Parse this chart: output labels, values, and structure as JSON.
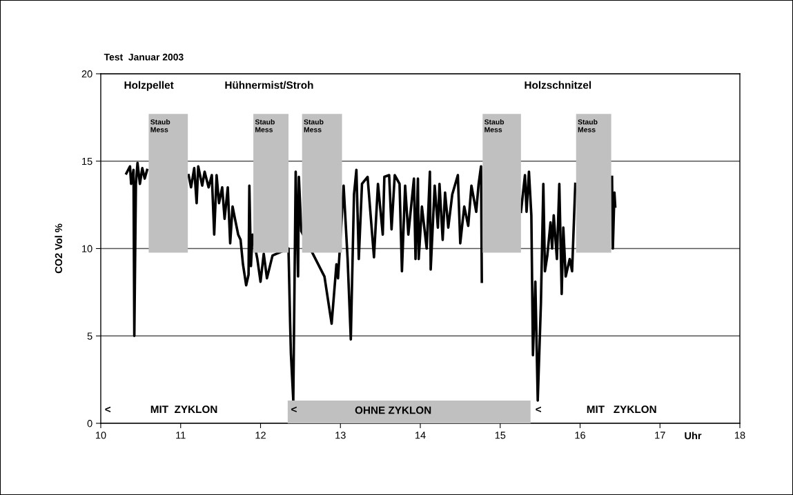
{
  "chart_data": {
    "type": "line",
    "title": "Test  Januar 2003",
    "xlabel": "Uhr",
    "ylabel": "CO2 Vol %",
    "xlim": [
      10,
      18
    ],
    "xticks": [
      10,
      11,
      12,
      13,
      14,
      15,
      16,
      17,
      18
    ],
    "ylim": [
      0,
      20
    ],
    "yticks": [
      0,
      5,
      10,
      15,
      20
    ],
    "grid": "y",
    "annotations": [
      "Holzpellet",
      "Hühnermist/Stroh",
      "Holzschnitzel",
      "<",
      "MIT  ZYKLON",
      "<",
      "<",
      "MIT   ZYKLON"
    ],
    "bands": [
      {
        "axis": "x",
        "from": 10.6,
        "to": 11.09,
        "label": "Staub\nMess",
        "color": "#c0c0c0"
      },
      {
        "axis": "x",
        "from": 11.91,
        "to": 12.35,
        "label": "Staub\nMess",
        "color": "#c0c0c0"
      },
      {
        "axis": "x",
        "from": 12.52,
        "to": 13.02,
        "label": "Staub\nMess",
        "color": "#c0c0c0"
      },
      {
        "axis": "x",
        "from": 14.78,
        "to": 15.26,
        "label": "Staub\nMess",
        "color": "#c0c0c0"
      },
      {
        "axis": "x",
        "from": 15.95,
        "to": 16.39,
        "label": "Staub\nMess",
        "color": "#c0c0c0"
      },
      {
        "axis": "x",
        "from": 12.34,
        "to": 15.38,
        "label": "OHNE ZYKLON",
        "color": "#c0c0c0"
      }
    ],
    "series": [
      {
        "color": "#000000",
        "x": [
          10.32,
          10.366,
          10.38,
          10.41,
          10.42,
          10.44,
          10.46,
          10.49,
          10.52,
          10.55,
          10.58,
          10.85,
          11.1,
          11.13,
          11.17,
          11.2,
          11.22,
          11.27,
          11.3,
          11.35,
          11.39,
          11.42,
          11.45,
          11.48,
          11.52,
          11.55,
          11.59,
          11.62,
          11.65,
          11.68,
          11.72,
          11.75,
          11.78,
          11.82,
          11.85,
          11.86,
          11.88,
          11.9,
          11.96,
          12.0,
          12.04,
          12.08,
          12.15,
          12.35,
          12.37,
          12.38,
          12.41,
          12.44,
          12.47,
          12.48,
          12.51,
          12.8,
          12.89,
          12.95,
          12.97,
          13.04,
          13.09,
          13.13,
          13.17,
          13.2,
          13.23,
          13.27,
          13.34,
          13.42,
          13.47,
          13.53,
          13.55,
          13.61,
          13.64,
          13.68,
          13.74,
          13.77,
          13.81,
          13.85,
          13.92,
          13.94,
          13.97,
          13.98,
          14.02,
          14.08,
          14.12,
          14.13,
          14.18,
          14.22,
          14.24,
          14.28,
          14.31,
          14.35,
          14.4,
          14.47,
          14.5,
          14.55,
          14.6,
          14.64,
          14.7,
          14.73,
          14.76,
          14.77,
          15.02,
          15.26,
          15.31,
          15.33,
          15.36,
          15.39,
          15.41,
          15.44,
          15.47,
          15.51,
          15.54,
          15.56,
          15.59,
          15.63,
          15.65,
          15.67,
          15.71,
          15.74,
          15.77,
          15.79,
          15.82,
          15.87,
          15.9,
          15.94,
          16.17,
          16.4,
          16.41,
          16.43,
          16.44
        ],
        "values": [
          14.3,
          14.7,
          13.7,
          14.5,
          5.0,
          13.7,
          14.9,
          13.7,
          14.6,
          14.0,
          14.5,
          null,
          14.2,
          13.5,
          14.6,
          12.6,
          14.7,
          13.6,
          14.4,
          13.5,
          14.2,
          10.8,
          14.2,
          12.6,
          13.5,
          11.7,
          13.5,
          10.3,
          12.4,
          11.7,
          10.8,
          10.5,
          9.1,
          7.9,
          8.5,
          13.6,
          9.0,
          10.8,
          9.4,
          8.1,
          9.7,
          8.3,
          9.6,
          10.0,
          5.8,
          4.0,
          1.3,
          14.4,
          8.4,
          14.1,
          11.0,
          8.4,
          5.7,
          9.1,
          8.3,
          13.6,
          9.4,
          4.8,
          13.1,
          14.5,
          9.4,
          13.7,
          14.1,
          9.5,
          13.7,
          10.8,
          14.1,
          14.2,
          11.1,
          14.2,
          13.7,
          8.7,
          13.6,
          10.8,
          14.0,
          9.4,
          14.0,
          9.4,
          12.4,
          10.0,
          14.4,
          8.8,
          13.6,
          11.2,
          13.7,
          10.5,
          13.2,
          11.2,
          13.1,
          14.2,
          10.3,
          12.4,
          11.3,
          13.6,
          12.1,
          13.7,
          14.7,
          8.1,
          null,
          12.1,
          14.2,
          12.1,
          14.4,
          11.9,
          3.9,
          8.1,
          1.3,
          6.9,
          13.7,
          8.7,
          9.6,
          11.5,
          10.0,
          11.9,
          9.4,
          13.7,
          7.4,
          11.2,
          8.4,
          9.4,
          8.7,
          13.7,
          null,
          14.1,
          10.0,
          13.2,
          12.4
        ]
      }
    ]
  }
}
